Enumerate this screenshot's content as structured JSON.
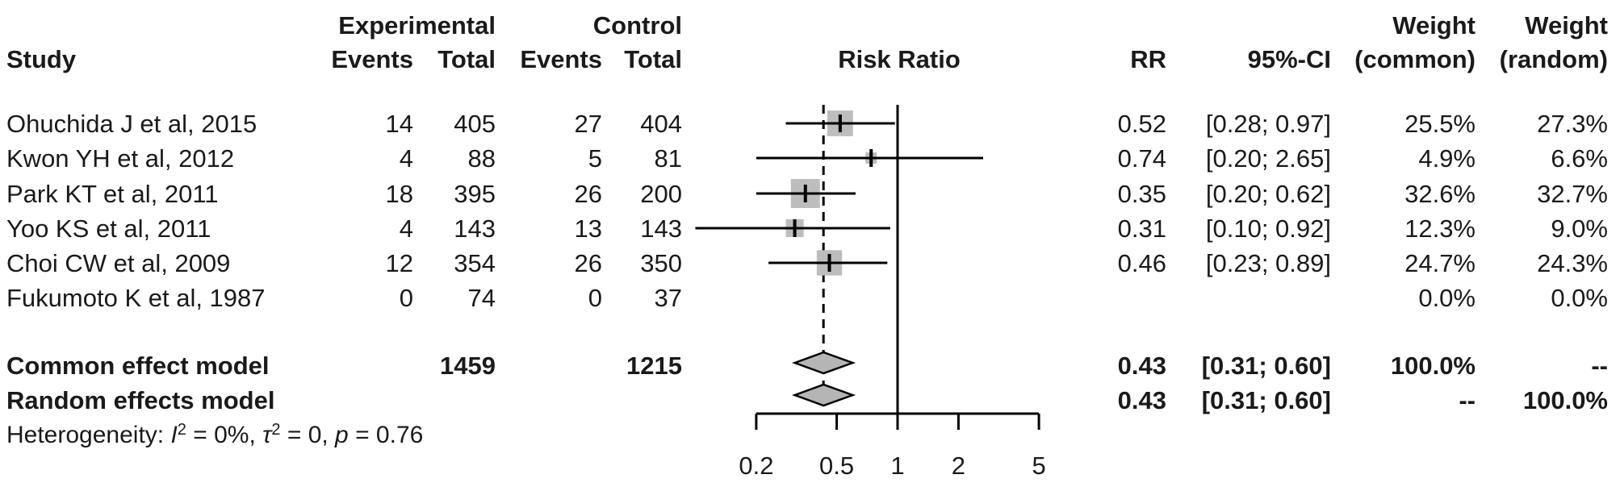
{
  "header": {
    "study": "Study",
    "experimental": "Experimental",
    "control": "Control",
    "events": "Events",
    "total": "Total",
    "risk_ratio": "Risk Ratio",
    "rr": "RR",
    "ci": "95%-CI",
    "weight": "Weight",
    "weight_common_sub": "(common)",
    "weight_random_sub": "(random)"
  },
  "studies": [
    {
      "name": "Ohuchida J et al, 2015",
      "exp_events": "14",
      "exp_total": "405",
      "ctrl_events": "27",
      "ctrl_total": "404",
      "rr": "0.52",
      "ci": "[0.28; 0.97]",
      "weight_common": "25.5%",
      "weight_random": "27.3%"
    },
    {
      "name": "Kwon YH et al, 2012",
      "exp_events": "4",
      "exp_total": "88",
      "ctrl_events": "5",
      "ctrl_total": "81",
      "rr": "0.74",
      "ci": "[0.20; 2.65]",
      "weight_common": "4.9%",
      "weight_random": "6.6%"
    },
    {
      "name": "Park KT et al, 2011",
      "exp_events": "18",
      "exp_total": "395",
      "ctrl_events": "26",
      "ctrl_total": "200",
      "rr": "0.35",
      "ci": "[0.20; 0.62]",
      "weight_common": "32.6%",
      "weight_random": "32.7%"
    },
    {
      "name": "Yoo KS et al, 2011",
      "exp_events": "4",
      "exp_total": "143",
      "ctrl_events": "13",
      "ctrl_total": "143",
      "rr": "0.31",
      "ci": "[0.10; 0.92]",
      "weight_common": "12.3%",
      "weight_random": "9.0%"
    },
    {
      "name": "Choi CW et al, 2009",
      "exp_events": "12",
      "exp_total": "354",
      "ctrl_events": "26",
      "ctrl_total": "350",
      "rr": "0.46",
      "ci": "[0.23; 0.89]",
      "weight_common": "24.7%",
      "weight_random": "24.3%"
    },
    {
      "name": "Fukumoto K et al, 1987",
      "exp_events": "0",
      "exp_total": "74",
      "ctrl_events": "0",
      "ctrl_total": "37",
      "rr": "",
      "ci": "",
      "weight_common": "0.0%",
      "weight_random": "0.0%"
    }
  ],
  "summary_rows": [
    {
      "label": "Common effect model",
      "exp_total": "1459",
      "ctrl_total": "1215",
      "rr": "0.43",
      "ci": "[0.31; 0.60]",
      "weight_common": "100.0%",
      "weight_random": "--"
    },
    {
      "label": "Random effects model",
      "exp_total": "",
      "ctrl_total": "",
      "rr": "0.43",
      "ci": "[0.31; 0.60]",
      "weight_common": "--",
      "weight_random": "100.0%"
    }
  ],
  "heterogeneity": {
    "parts": [
      {
        "text": "Heterogeneity: "
      },
      {
        "text": "I",
        "italic": true
      },
      {
        "text": "2",
        "sup": true
      },
      {
        "text": " = 0%, "
      },
      {
        "text": "τ",
        "italic": true
      },
      {
        "text": "2",
        "sup": true
      },
      {
        "text": " = 0, "
      },
      {
        "text": "p",
        "italic": true
      },
      {
        "text": " = 0.76"
      }
    ]
  },
  "colors": {
    "square": "#bdbdbd",
    "diamond": "#b5b5b5",
    "line": "#000000",
    "text": "#1a1a1a"
  },
  "chart_data": {
    "type": "forest",
    "measure": "Risk Ratio",
    "x_scale": "log",
    "x_ticks": [
      0.2,
      0.5,
      1,
      2,
      5
    ],
    "x_tick_labels": [
      "0.2",
      "0.5",
      "1",
      "2",
      "5"
    ],
    "null_line": 1,
    "pooled_dashed_line": 0.43,
    "studies": [
      {
        "name": "Ohuchida J et al, 2015",
        "exp_events": 14,
        "exp_total": 405,
        "ctrl_events": 27,
        "ctrl_total": 404,
        "rr": 0.52,
        "ci_low": 0.28,
        "ci_high": 0.97,
        "weight_common": 25.5,
        "weight_random": 27.3
      },
      {
        "name": "Kwon YH et al, 2012",
        "exp_events": 4,
        "exp_total": 88,
        "ctrl_events": 5,
        "ctrl_total": 81,
        "rr": 0.74,
        "ci_low": 0.2,
        "ci_high": 2.65,
        "weight_common": 4.9,
        "weight_random": 6.6
      },
      {
        "name": "Park KT et al, 2011",
        "exp_events": 18,
        "exp_total": 395,
        "ctrl_events": 26,
        "ctrl_total": 200,
        "rr": 0.35,
        "ci_low": 0.2,
        "ci_high": 0.62,
        "weight_common": 32.6,
        "weight_random": 32.7
      },
      {
        "name": "Yoo KS et al, 2011",
        "exp_events": 4,
        "exp_total": 143,
        "ctrl_events": 13,
        "ctrl_total": 143,
        "rr": 0.31,
        "ci_low": 0.1,
        "ci_high": 0.92,
        "weight_common": 12.3,
        "weight_random": 9.0
      },
      {
        "name": "Choi CW et al, 2009",
        "exp_events": 12,
        "exp_total": 354,
        "ctrl_events": 26,
        "ctrl_total": 350,
        "rr": 0.46,
        "ci_low": 0.23,
        "ci_high": 0.89,
        "weight_common": 24.7,
        "weight_random": 24.3
      },
      {
        "name": "Fukumoto K et al, 1987",
        "exp_events": 0,
        "exp_total": 74,
        "ctrl_events": 0,
        "ctrl_total": 37,
        "rr": null,
        "ci_low": null,
        "ci_high": null,
        "weight_common": 0.0,
        "weight_random": 0.0
      }
    ],
    "totals": {
      "exp_total": 1459,
      "ctrl_total": 1215
    },
    "diamonds": [
      {
        "label": "Common effect model",
        "est": 0.43,
        "ci_low": 0.31,
        "ci_high": 0.6
      },
      {
        "label": "Random effects model",
        "est": 0.43,
        "ci_low": 0.31,
        "ci_high": 0.6
      }
    ],
    "heterogeneity": {
      "I2": "0%",
      "tau2": 0,
      "p": 0.76
    }
  }
}
